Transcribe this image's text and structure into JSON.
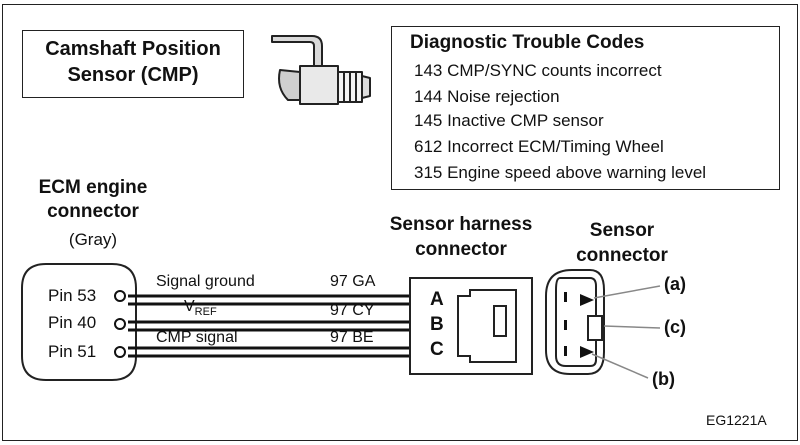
{
  "cmp_title": "Camshaft Position Sensor (CMP)",
  "dtc": {
    "heading": "Diagnostic Trouble Codes",
    "codes": [
      "143 CMP/SYNC counts incorrect",
      "144 Noise rejection",
      "145 Inactive CMP sensor",
      "612 Incorrect ECM/Timing Wheel",
      "315 Engine speed above warning level"
    ]
  },
  "ecm": {
    "title": "ECM engine connector",
    "subtitle": "(Gray)",
    "pins": [
      "Pin 53",
      "Pin 40",
      "Pin 51"
    ]
  },
  "wires": [
    {
      "name": "Signal ground",
      "code": "97 GA",
      "letter": "A"
    },
    {
      "name": "V",
      "name_sub": "REF",
      "code": "97 CY",
      "letter": "B"
    },
    {
      "name": "CMP signal",
      "code": "97 BE",
      "letter": "C"
    }
  ],
  "harness_title": "Sensor harness connector",
  "sensor_title": "Sensor connector",
  "callouts": [
    "(a)",
    "(c)",
    "(b)"
  ],
  "figure_id": "EG1221A"
}
